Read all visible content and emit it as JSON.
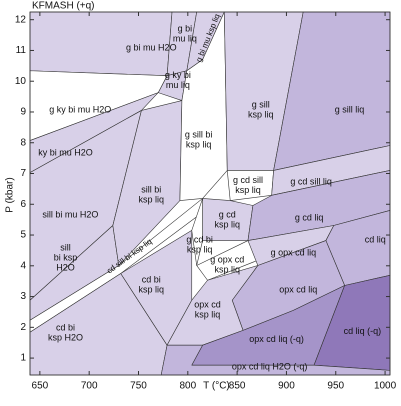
{
  "chart_data": {
    "type": "phase-diagram",
    "title": "KFMASH (+q)",
    "xlabel": "T (°C)",
    "ylabel": "P (kbar)",
    "xlim": [
      640,
      1005
    ],
    "ylim": [
      0.45,
      12.25
    ],
    "xticks": [
      650,
      700,
      750,
      800,
      850,
      900,
      950,
      1000
    ],
    "yticks": [
      1,
      2,
      3,
      4,
      5,
      6,
      7,
      8,
      9,
      10,
      11,
      12
    ],
    "fields": [
      {
        "label": [
          "g bi mu H2O"
        ],
        "x": 763,
        "y": 11.06,
        "color": "#d8d0e8",
        "polygon": [
          [
            640,
            12.25
          ],
          [
            784,
            12.25
          ],
          [
            779,
            10.18
          ],
          [
            640,
            10.34
          ]
        ]
      },
      {
        "label": [
          "g bi",
          "mu liq"
        ],
        "x": 797,
        "y": 11.52,
        "color": "#d8d0e8",
        "polygon": [
          [
            784,
            12.25
          ],
          [
            809,
            12.25
          ],
          [
            799,
            10.34
          ],
          [
            779,
            10.18
          ]
        ]
      },
      {
        "label": [
          "g bi mu ksp liq"
        ],
        "x": 821,
        "y": 11.4,
        "color": "#d8d0e8",
        "polygon": [
          [
            809,
            12.25
          ],
          [
            837,
            12.25
          ],
          [
            815,
            10.7
          ],
          [
            799,
            10.34
          ]
        ]
      },
      {
        "label": [
          "g ky bi",
          "mu liq"
        ],
        "x": 790,
        "y": 10.0,
        "color": "#d8d0e8",
        "polygon": [
          [
            779,
            10.18
          ],
          [
            799,
            10.34
          ],
          [
            794,
            9.37
          ],
          [
            770,
            9.63
          ]
        ]
      },
      {
        "label": [
          "g ky bi mu H2O"
        ],
        "x": 691,
        "y": 9.05,
        "color": "#ffffff",
        "polygon": [
          [
            640,
            10.34
          ],
          [
            779,
            10.18
          ],
          [
            770,
            9.63
          ],
          [
            640,
            8.07
          ]
        ]
      },
      {
        "label": [
          "ky bi mu H2O"
        ],
        "x": 676,
        "y": 7.65,
        "color": "#d8d0e8",
        "polygon": [
          [
            640,
            8.07
          ],
          [
            770,
            9.63
          ],
          [
            753,
            9.05
          ],
          [
            640,
            7.03
          ]
        ]
      },
      {
        "label": [
          "sill bi mu H2O"
        ],
        "x": 681,
        "y": 5.64,
        "color": "#d8d0e8",
        "polygon": [
          [
            640,
            7.03
          ],
          [
            753,
            9.05
          ],
          [
            724,
            5.31
          ],
          [
            640,
            2.88
          ]
        ]
      },
      {
        "label": [
          "sill",
          "bi ksp",
          "H2O"
        ],
        "x": 676,
        "y": 4.24,
        "color": "#d8d0e8",
        "polygon": [
          [
            640,
            2.88
          ],
          [
            724,
            5.31
          ],
          [
            730,
            4.01
          ],
          [
            640,
            2.23
          ]
        ]
      },
      {
        "label": [
          "cd sill bi ksp liq"
        ],
        "x": 741,
        "y": 4.3,
        "color": "#ffffff",
        "polygon": [
          [
            640,
            2.23
          ],
          [
            730,
            4.01
          ],
          [
            815,
            6.19
          ],
          [
            820,
            5.86
          ],
          [
            732,
            3.75
          ],
          [
            640,
            1.84
          ]
        ]
      },
      {
        "label": [
          "cd bi",
          "ksp H2O"
        ],
        "x": 676,
        "y": 1.8,
        "color": "#d8d0e8",
        "polygon": [
          [
            640,
            1.84
          ],
          [
            732,
            3.75
          ],
          [
            779,
            1.42
          ],
          [
            773,
            0.45
          ],
          [
            640,
            0.45
          ]
        ]
      },
      {
        "label": [
          "sill bi",
          "ksp liq"
        ],
        "x": 763,
        "y": 6.29,
        "color": "#d8d0e8",
        "polygon": [
          [
            753,
            9.05
          ],
          [
            794,
            9.37
          ],
          [
            792,
            6.12
          ],
          [
            730,
            4.01
          ],
          [
            724,
            5.31
          ]
        ]
      },
      {
        "label": [
          "cd bi",
          "ksp liq"
        ],
        "x": 763,
        "y": 3.36,
        "color": "#d8d0e8",
        "polygon": [
          [
            732,
            3.75
          ],
          [
            804,
            5.15
          ],
          [
            804,
            2.88
          ],
          [
            779,
            1.42
          ]
        ]
      },
      {
        "label": [
          "g sill bi",
          "ksp liq"
        ],
        "x": 811,
        "y": 8.07,
        "color": "#ffffff",
        "polygon": [
          [
            794,
            9.37
          ],
          [
            799,
            10.34
          ],
          [
            815,
            10.7
          ],
          [
            837,
            12.25
          ],
          [
            840,
            7.1
          ],
          [
            815,
            6.19
          ],
          [
            792,
            6.12
          ]
        ]
      },
      {
        "label": [
          "g sill",
          "ksp liq"
        ],
        "x": 874,
        "y": 9.05,
        "color": "#d8d0e8",
        "polygon": [
          [
            837,
            12.25
          ],
          [
            917,
            12.25
          ],
          [
            887,
            7.1
          ],
          [
            840,
            7.1
          ]
        ]
      },
      {
        "label": [
          "g sill liq"
        ],
        "x": 964,
        "y": 9.05,
        "color": "#c2b6dc",
        "polygon": [
          [
            917,
            12.25
          ],
          [
            1005,
            12.25
          ],
          [
            1005,
            7.91
          ],
          [
            887,
            7.1
          ]
        ]
      },
      {
        "label": [
          "g cd sill",
          "ksp liq"
        ],
        "x": 861,
        "y": 6.6,
        "color": "#ffffff",
        "polygon": [
          [
            840,
            7.1
          ],
          [
            887,
            7.1
          ],
          [
            885,
            6.29
          ],
          [
            843,
            6.12
          ]
        ]
      },
      {
        "label": [
          "g cd sill liq"
        ],
        "x": 925,
        "y": 6.7,
        "color": "#d8d0e8",
        "polygon": [
          [
            887,
            7.1
          ],
          [
            1005,
            7.91
          ],
          [
            1005,
            7.1
          ],
          [
            885,
            6.29
          ]
        ]
      },
      {
        "label": [
          "g cd",
          "ksp liq"
        ],
        "x": 840,
        "y": 5.47,
        "color": "#d8d0e8",
        "polygon": [
          [
            815,
            6.19
          ],
          [
            843,
            6.12
          ],
          [
            866,
            5.96
          ],
          [
            861,
            4.82
          ],
          [
            815,
            4.82
          ]
        ]
      },
      {
        "label": [
          "g cd liq"
        ],
        "x": 923,
        "y": 5.54,
        "color": "#c2b6dc",
        "polygon": [
          [
            866,
            5.96
          ],
          [
            885,
            6.29
          ],
          [
            1005,
            7.1
          ],
          [
            1005,
            5.8
          ],
          [
            948,
            5.31
          ],
          [
            861,
            4.82
          ]
        ]
      },
      {
        "label": [
          "g cd bi",
          "ksp liq"
        ],
        "x": 812,
        "y": 4.66,
        "color": "#ffffff",
        "polygon": [
          [
            804,
            5.15
          ],
          [
            815,
            6.19
          ],
          [
            815,
            4.82
          ],
          [
            809,
            4.01
          ]
        ]
      },
      {
        "label": [
          "g opx cd",
          "ksp liq"
        ],
        "x": 840,
        "y": 4.01,
        "color": "#ffffff",
        "polygon": [
          [
            809,
            4.01
          ],
          [
            861,
            4.82
          ],
          [
            871,
            4.18
          ],
          [
            820,
            3.53
          ]
        ]
      },
      {
        "label": [
          "g opx cd liq"
        ],
        "x": 907,
        "y": 4.4,
        "color": "#d8d0e8",
        "polygon": [
          [
            861,
            4.82
          ],
          [
            948,
            5.31
          ],
          [
            940,
            4.82
          ],
          [
            871,
            4.01
          ]
        ]
      },
      {
        "label": [
          "cd liq"
        ],
        "x": 990,
        "y": 4.82,
        "color": "#c2b6dc",
        "polygon": [
          [
            948,
            5.31
          ],
          [
            1005,
            5.8
          ],
          [
            1005,
            3.69
          ],
          [
            959,
            3.36
          ],
          [
            940,
            4.82
          ]
        ]
      },
      {
        "label": [
          "opx cd liq"
        ],
        "x": 912,
        "y": 3.2,
        "color": "#c2b6dc",
        "polygon": [
          [
            871,
            4.01
          ],
          [
            940,
            4.82
          ],
          [
            959,
            3.36
          ],
          [
            907,
            2.55
          ],
          [
            856,
            1.9
          ],
          [
            845,
            2.88
          ]
        ]
      },
      {
        "label": [
          "opx cd",
          "ksp liq"
        ],
        "x": 820,
        "y": 2.55,
        "color": "#d8d0e8",
        "polygon": [
          [
            804,
            2.88
          ],
          [
            820,
            3.53
          ],
          [
            871,
            4.01
          ],
          [
            845,
            2.88
          ],
          [
            856,
            1.9
          ],
          [
            815,
            1.42
          ],
          [
            779,
            1.42
          ]
        ]
      },
      {
        "label": [
          "opx cd liq (-q)"
        ],
        "x": 890,
        "y": 1.58,
        "color": "#a594c9",
        "polygon": [
          [
            815,
            1.42
          ],
          [
            856,
            1.9
          ],
          [
            907,
            2.55
          ],
          [
            959,
            3.36
          ],
          [
            928,
            0.77
          ],
          [
            804,
            0.77
          ]
        ]
      },
      {
        "label": [
          "cd liq (-q)"
        ],
        "x": 977,
        "y": 1.84,
        "color": "#8f78b9",
        "polygon": [
          [
            959,
            3.36
          ],
          [
            1005,
            3.69
          ],
          [
            1005,
            0.6
          ],
          [
            928,
            0.77
          ]
        ]
      },
      {
        "label": [
          "opx cd liq H2O (-q)"
        ],
        "x": 883,
        "y": 0.69,
        "color": "#c2b6dc",
        "polygon": [
          [
            779,
            1.42
          ],
          [
            815,
            1.42
          ],
          [
            804,
            0.77
          ],
          [
            928,
            0.77
          ],
          [
            1005,
            0.6
          ],
          [
            1005,
            0.45
          ],
          [
            773,
            0.45
          ]
        ]
      }
    ]
  }
}
